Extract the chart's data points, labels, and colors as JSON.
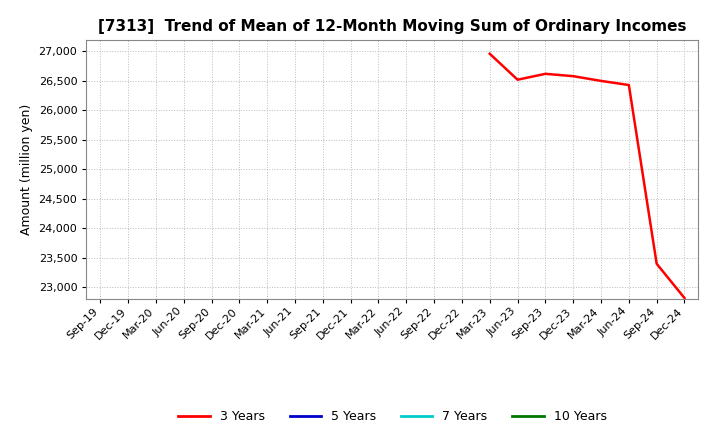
{
  "title": "[7313]  Trend of Mean of 12-Month Moving Sum of Ordinary Incomes",
  "ylabel": "Amount (million yen)",
  "background_color": "#ffffff",
  "plot_bg_color": "#ffffff",
  "grid_color": "#bbbbbb",
  "ylim": [
    22800,
    27200
  ],
  "yticks": [
    23000,
    23500,
    24000,
    24500,
    25000,
    25500,
    26000,
    26500,
    27000
  ],
  "x_labels": [
    "Sep-19",
    "Dec-19",
    "Mar-20",
    "Jun-20",
    "Sep-20",
    "Dec-20",
    "Mar-21",
    "Jun-21",
    "Sep-21",
    "Dec-21",
    "Mar-22",
    "Jun-22",
    "Sep-22",
    "Dec-22",
    "Mar-23",
    "Jun-23",
    "Sep-23",
    "Dec-23",
    "Mar-24",
    "Jun-24",
    "Sep-24",
    "Dec-24"
  ],
  "three_y_x": [
    14,
    15,
    16,
    17,
    18,
    19,
    20,
    21
  ],
  "three_y_y": [
    26960,
    26520,
    26620,
    26580,
    26500,
    26430,
    23400,
    22820
  ],
  "legend_entries": [
    {
      "label": "3 Years",
      "color": "#ff0000",
      "linestyle": "-"
    },
    {
      "label": "5 Years",
      "color": "#0000cc",
      "linestyle": "-"
    },
    {
      "label": "7 Years",
      "color": "#00cccc",
      "linestyle": "-"
    },
    {
      "label": "10 Years",
      "color": "#007700",
      "linestyle": "-"
    }
  ],
  "title_fontsize": 11,
  "ylabel_fontsize": 9,
  "tick_labelsize": 8,
  "legend_fontsize": 9
}
